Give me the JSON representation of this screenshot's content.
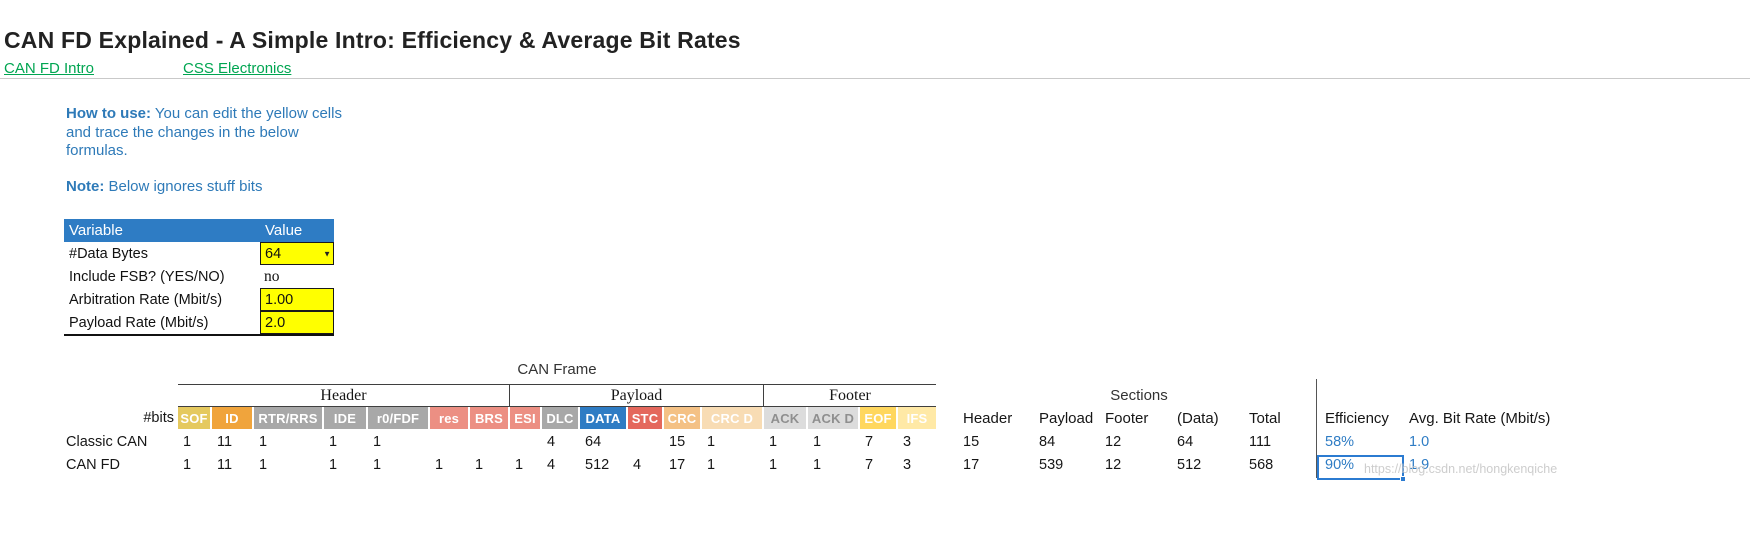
{
  "header": {
    "title": "CAN FD Explained - A Simple Intro: Efficiency & Average Bit Rates",
    "links": [
      {
        "label": "CAN FD Intro"
      },
      {
        "label": "CSS Electronics"
      }
    ]
  },
  "instructions": {
    "how_to_use_label": "How to use:",
    "how_to_use_text": " You can edit the yellow cells and trace the changes in the below formulas.",
    "note_label": "Note:",
    "note_text": " Below ignores stuff bits"
  },
  "variables_table": {
    "headers": [
      "Variable",
      "Value"
    ],
    "rows": [
      {
        "name": "#Data Bytes",
        "value": "64",
        "style": "dropdown"
      },
      {
        "name": "Include FSB? (YES/NO)",
        "value": "no",
        "style": "plain"
      },
      {
        "name": "Arbitration Rate (Mbit/s)",
        "value": "1.00",
        "style": "yellow"
      },
      {
        "name": "Payload Rate (Mbit/s)",
        "value": "2.0",
        "style": "yellow"
      }
    ]
  },
  "frame_table": {
    "title": "CAN Frame",
    "bits_label": "#bits",
    "groups": [
      {
        "label": "Header"
      },
      {
        "label": "Payload"
      },
      {
        "label": "Footer"
      }
    ],
    "columns": [
      {
        "label": "SOF",
        "bg": "#e5c95f",
        "fg": "#ffffff"
      },
      {
        "label": "ID",
        "bg": "#f0a43c",
        "fg": "#ffffff"
      },
      {
        "label": "RTR/RRS",
        "bg": "#a8a8a8",
        "fg": "#ffffff"
      },
      {
        "label": "IDE",
        "bg": "#a8a8a8",
        "fg": "#ffffff"
      },
      {
        "label": "r0/FDF",
        "bg": "#a8a8a8",
        "fg": "#ffffff"
      },
      {
        "label": "res",
        "bg": "#ec8f83",
        "fg": "#ffffff"
      },
      {
        "label": "BRS",
        "bg": "#ec8f83",
        "fg": "#ffffff"
      },
      {
        "label": "ESI",
        "bg": "#ec8f83",
        "fg": "#ffffff"
      },
      {
        "label": "DLC",
        "bg": "#a8a8a8",
        "fg": "#ffffff"
      },
      {
        "label": "DATA",
        "bg": "#2e7cc4",
        "fg": "#ffffff"
      },
      {
        "label": "STC",
        "bg": "#e4685c",
        "fg": "#ffffff"
      },
      {
        "label": "CRC",
        "bg": "#f4c185",
        "fg": "#ffffff"
      },
      {
        "label": "CRC D",
        "bg": "#f8dcb4",
        "fg": "#ffffff"
      },
      {
        "label": "ACK",
        "bg": "#dcdcdc",
        "fg": "#8f8f8f"
      },
      {
        "label": "ACK D",
        "bg": "#dcdcdc",
        "fg": "#8f8f8f"
      },
      {
        "label": "EOF",
        "bg": "#ffd75e",
        "fg": "#ffffff"
      },
      {
        "label": "IFS",
        "bg": "#ffe9a6",
        "fg": "#ffffff"
      }
    ],
    "rows": [
      {
        "label": "Classic CAN",
        "values": [
          "1",
          "11",
          "1",
          "1",
          "1",
          "",
          "",
          "",
          "4",
          "64",
          "",
          "15",
          "1",
          "1",
          "1",
          "7",
          "3"
        ]
      },
      {
        "label": "CAN FD",
        "values": [
          "1",
          "11",
          "1",
          "1",
          "1",
          "1",
          "1",
          "1",
          "4",
          "512",
          "4",
          "17",
          "1",
          "1",
          "1",
          "7",
          "3"
        ]
      }
    ]
  },
  "sections_table": {
    "title": "Sections",
    "columns": [
      "Header",
      "Payload",
      "Footer",
      "(Data)",
      "Total"
    ],
    "efficiency_label": "Efficiency",
    "avg_label": "Avg. Bit Rate (Mbit/s)",
    "rows": [
      {
        "label": "Classic CAN",
        "values": [
          "15",
          "84",
          "12",
          "64",
          "111"
        ],
        "efficiency": "58%",
        "avg_bit_rate": "1.0",
        "selected": false
      },
      {
        "label": "CAN FD",
        "values": [
          "17",
          "539",
          "12",
          "512",
          "568"
        ],
        "efficiency": "90%",
        "avg_bit_rate": "1.9",
        "selected": true
      }
    ]
  },
  "colors": {
    "table_header_blue": "#2e7cc4",
    "link_green": "#00a551",
    "note_blue": "#2e7ab8",
    "input_yellow": "#ffff00",
    "result_blue": "#2e7cc4",
    "selection_blue": "#2b7bd1"
  },
  "watermark": "https://blog.csdn.net/hongkenqiche"
}
